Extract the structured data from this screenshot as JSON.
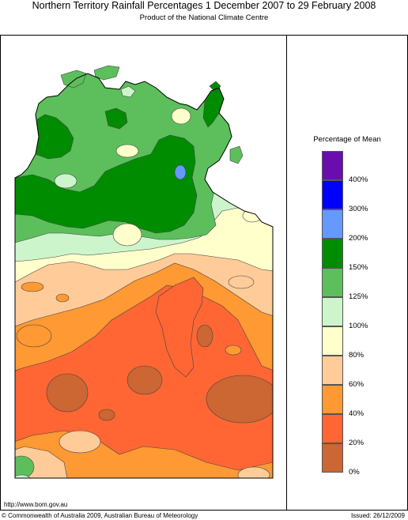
{
  "title": "Northern Territory Rainfall Percentages 1 December 2007 to 29 February 2008",
  "subtitle": "Product of the National Climate Centre",
  "legend": {
    "title": "Percentage of Mean",
    "labels": [
      "400%",
      "300%",
      "200%",
      "150%",
      "125%",
      "100%",
      "80%",
      "60%",
      "40%",
      "20%",
      "0%"
    ],
    "colors": [
      "#6a0dad",
      "#0000ff",
      "#6699ff",
      "#008c00",
      "#5cbf5c",
      "#ccf5cc",
      "#ffffcc",
      "#ffcc99",
      "#ff9933",
      "#ff6633",
      "#cc6633"
    ]
  },
  "map_colors": {
    "sea": "#ffffff",
    "band_0_20": "#cc6633",
    "band_20_40": "#ff6633",
    "band_40_60": "#ff9933",
    "band_60_80": "#ffcc99",
    "band_80_100": "#ffffcc",
    "band_100_125": "#ccf5cc",
    "band_125_150": "#5cbf5c",
    "band_150_200": "#008c00",
    "band_200_300": "#6699ff"
  },
  "footer": {
    "url": "http://www.bom.gov.au",
    "copyright": "© Commonwealth of Australia 2009, Australian Bureau of Meteorology",
    "issued": "Issued: 26/12/2009"
  }
}
